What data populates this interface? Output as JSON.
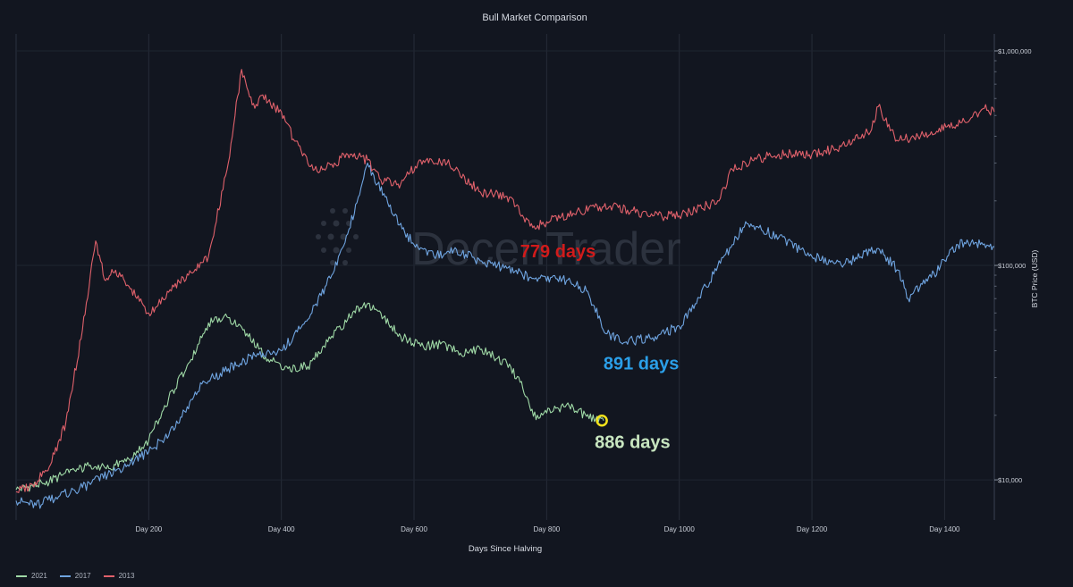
{
  "chart_data": {
    "type": "line",
    "title": "Bull Market Comparison",
    "xlabel": "Days Since Halving",
    "ylabel": "BTC Price (USD)",
    "yscale": "log",
    "xlim": [
      0,
      1475
    ],
    "ylim": [
      6500,
      1200000
    ],
    "xticks": [
      {
        "value": 200,
        "label": "Day 200"
      },
      {
        "value": 400,
        "label": "Day 400"
      },
      {
        "value": 600,
        "label": "Day 600"
      },
      {
        "value": 800,
        "label": "Day 800"
      },
      {
        "value": 1000,
        "label": "Day 1000"
      },
      {
        "value": 1200,
        "label": "Day 1200"
      },
      {
        "value": 1400,
        "label": "Day 1400"
      }
    ],
    "yticks": [
      {
        "value": 10000,
        "label": "$10,000"
      },
      {
        "value": 100000,
        "label": "$100,000"
      },
      {
        "value": 1000000,
        "label": "$1,000,000"
      }
    ],
    "grid": true,
    "legend_position": "bottom-left",
    "series": [
      {
        "name": "2021",
        "color": "#9fd9a6",
        "x": [
          0,
          40,
          80,
          110,
          140,
          170,
          200,
          230,
          260,
          290,
          320,
          350,
          380,
          410,
          440,
          470,
          500,
          525,
          550,
          580,
          610,
          640,
          670,
          700,
          740,
          760,
          780,
          800,
          830,
          860,
          886
        ],
        "y": [
          9000,
          9600,
          10800,
          11600,
          11300,
          12500,
          15300,
          24000,
          35000,
          54000,
          57000,
          46500,
          36500,
          33000,
          33800,
          44000,
          56000,
          67000,
          60000,
          46500,
          42000,
          43000,
          39000,
          40500,
          35000,
          28500,
          19800,
          20500,
          22400,
          19800,
          18900
        ]
      },
      {
        "name": "2017",
        "color": "#6fa4e0",
        "x": [
          0,
          30,
          60,
          100,
          150,
          200,
          240,
          280,
          320,
          360,
          400,
          440,
          480,
          500,
          520,
          530,
          545,
          570,
          600,
          630,
          660,
          700,
          740,
          780,
          830,
          860,
          891,
          920,
          960,
          1000,
          1040,
          1080,
          1100,
          1150,
          1200,
          1250,
          1300,
          1330,
          1345,
          1380,
          1420,
          1460,
          1475
        ],
        "y": [
          8000,
          7600,
          8300,
          9200,
          11000,
          13500,
          17500,
          28000,
          33000,
          38000,
          40000,
          56000,
          95000,
          140000,
          230000,
          300000,
          240000,
          170000,
          125000,
          110000,
          118000,
          105000,
          97000,
          87000,
          85000,
          76000,
          48000,
          44000,
          46000,
          52000,
          80000,
          125000,
          160000,
          135000,
          110000,
          102000,
          120000,
          95000,
          70000,
          88000,
          125000,
          126000,
          122000
        ]
      },
      {
        "name": "2013",
        "color": "#e0616b",
        "x": [
          0,
          25,
          50,
          75,
          100,
          120,
          135,
          150,
          170,
          200,
          230,
          260,
          290,
          320,
          340,
          360,
          370,
          380,
          400,
          420,
          450,
          480,
          500,
          530,
          550,
          580,
          610,
          650,
          700,
          740,
          779,
          800,
          850,
          900,
          960,
          1000,
          1060,
          1080,
          1110,
          1150,
          1200,
          1250,
          1290,
          1300,
          1330,
          1380,
          1430,
          1460,
          1475
        ],
        "y": [
          8800,
          9500,
          11500,
          18500,
          50000,
          130000,
          85000,
          95000,
          80000,
          60000,
          75000,
          90000,
          110000,
          300000,
          820000,
          540000,
          620000,
          580000,
          520000,
          380000,
          280000,
          300000,
          330000,
          310000,
          250000,
          240000,
          310000,
          300000,
          220000,
          210000,
          150000,
          160000,
          180000,
          190000,
          170000,
          170000,
          200000,
          280000,
          310000,
          330000,
          330000,
          360000,
          430000,
          550000,
          380000,
          420000,
          470000,
          540000,
          520000
        ]
      }
    ],
    "annotations": [
      {
        "text": "779 days",
        "color": "#d11b1b",
        "x": 779,
        "y": 150000
      },
      {
        "text": "891 days",
        "color": "#2b9fe8",
        "x": 891,
        "y": 48000
      },
      {
        "text": "886 days",
        "color": "#c8e6c0",
        "x": 886,
        "y": 18900
      }
    ],
    "marker": {
      "x": 886,
      "y": 18900,
      "color": "#f2e21b"
    }
  }
}
